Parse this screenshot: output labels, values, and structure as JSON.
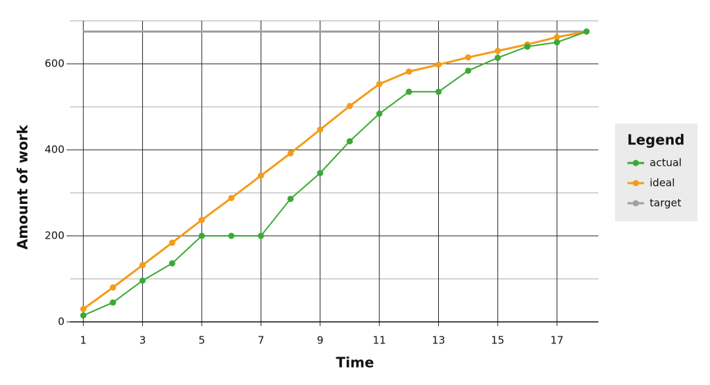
{
  "chart_data": {
    "type": "line",
    "x_label": "Time",
    "y_label": "Amount of work",
    "xlim": [
      0.55,
      18.4
    ],
    "xticks": [
      1,
      3,
      5,
      7,
      9,
      11,
      13,
      15,
      17
    ],
    "ylim": [
      0,
      700
    ],
    "yticks": [
      0,
      200,
      400,
      600
    ],
    "minor_yticks": [
      100,
      300,
      500,
      700
    ],
    "grid": true,
    "legend_title": "Legend",
    "legend_position": "right",
    "x": [
      1,
      2,
      3,
      4,
      5,
      6,
      7,
      8,
      9,
      10,
      11,
      12,
      13,
      14,
      15,
      16,
      17,
      18
    ],
    "series": [
      {
        "name": "actual",
        "color": "#3aaa35",
        "values": [
          15,
          45,
          96,
          136,
          200,
          200,
          200,
          286,
          346,
          420,
          484,
          535,
          535,
          584,
          614,
          640,
          650,
          675
        ]
      },
      {
        "name": "ideal",
        "color": "#f39c1a",
        "values": [
          30,
          80,
          132,
          184,
          237,
          288,
          340,
          392,
          447,
          502,
          553,
          582,
          598,
          615,
          630,
          645,
          662,
          675
        ]
      },
      {
        "name": "target",
        "color": "#a0a0a0",
        "x": [
          1,
          18
        ],
        "values": [
          675,
          675
        ],
        "markers": false
      }
    ]
  }
}
